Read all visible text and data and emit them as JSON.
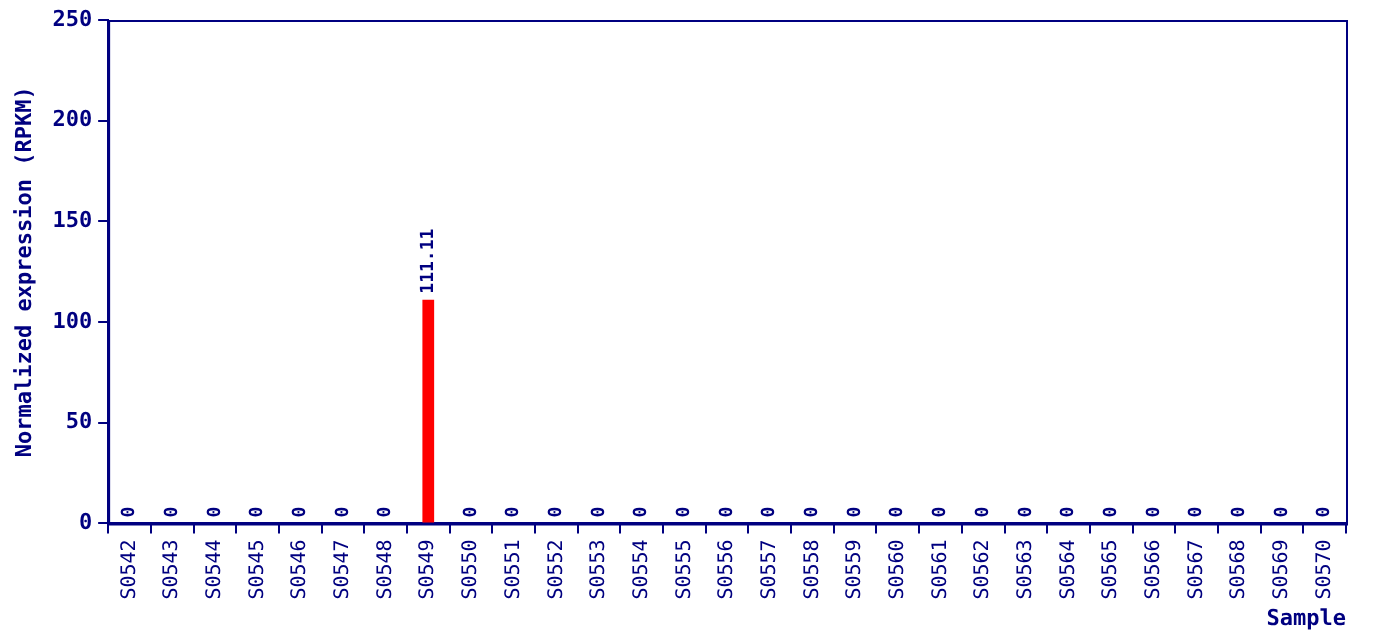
{
  "chart_data": {
    "type": "bar",
    "xlabel": "Sample",
    "ylabel": "Normalized expression (RPKM)",
    "categories": [
      "S0542",
      "S0543",
      "S0544",
      "S0545",
      "S0546",
      "S0547",
      "S0548",
      "S0549",
      "S0550",
      "S0551",
      "S0552",
      "S0553",
      "S0554",
      "S0555",
      "S0556",
      "S0557",
      "S0558",
      "S0559",
      "S0560",
      "S0561",
      "S0562",
      "S0563",
      "S0564",
      "S0565",
      "S0566",
      "S0567",
      "S0568",
      "S0569",
      "S0570"
    ],
    "values": [
      0,
      0,
      0,
      0,
      0,
      0,
      0,
      111.11,
      0,
      0,
      0,
      0,
      0,
      0,
      0,
      0,
      0,
      0,
      0,
      0,
      0,
      0,
      0,
      0,
      0,
      0,
      0,
      0,
      0
    ],
    "color": "#ff0000",
    "ylim": [
      0,
      250
    ],
    "yticks": [
      0,
      50,
      100,
      150,
      200,
      250
    ],
    "grid": false,
    "data_labels": true
  }
}
